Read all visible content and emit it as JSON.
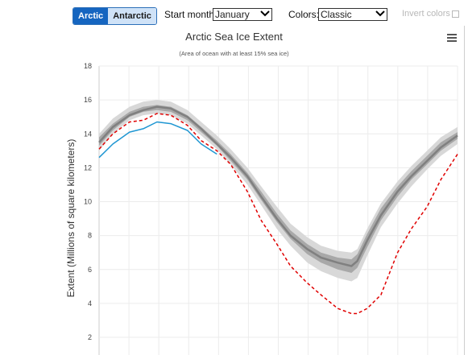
{
  "controls": {
    "hemisphere": {
      "options": [
        "Arctic",
        "Antarctic"
      ],
      "selected": "Arctic"
    },
    "start_month": {
      "label": "Start month:",
      "value": "January"
    },
    "colors": {
      "label": "Colors:",
      "value": "Classic"
    },
    "invert_label": "Invert colors",
    "menu_icon": "hamburger-menu-icon"
  },
  "chart_data": {
    "type": "line",
    "title": "Arctic Sea Ice Extent",
    "subtitle": "(Area of ocean with at least 15% sea ice)",
    "ylabel": "Extent (Millions of square kilometers)",
    "ylim": [
      2,
      18
    ],
    "yticks": [
      2,
      4,
      6,
      8,
      10,
      12,
      14,
      16,
      18
    ],
    "xlim": [
      1,
      366
    ],
    "xlabel": "",
    "grid": true,
    "x": [
      1,
      15,
      32,
      46,
      60,
      74,
      91,
      105,
      121,
      135,
      152,
      166,
      182,
      196,
      213,
      227,
      244,
      258,
      264,
      274,
      288,
      305,
      319,
      335,
      349,
      366
    ],
    "series": [
      {
        "role": "interdecile-range",
        "color": "#d8d8d8",
        "upper": [
          14.0,
          14.9,
          15.6,
          15.9,
          16.0,
          15.9,
          15.4,
          14.7,
          13.9,
          13.1,
          12.0,
          10.9,
          9.7,
          8.7,
          7.9,
          7.4,
          7.1,
          7.0,
          7.2,
          8.4,
          9.9,
          11.2,
          12.1,
          13.0,
          13.8,
          14.4
        ],
        "lower": [
          13.0,
          14.0,
          14.8,
          15.1,
          15.2,
          15.1,
          14.6,
          13.9,
          13.1,
          12.2,
          11.0,
          9.8,
          8.4,
          7.4,
          6.4,
          5.9,
          5.5,
          5.3,
          5.5,
          6.8,
          8.5,
          9.9,
          10.9,
          11.9,
          12.7,
          13.4
        ]
      },
      {
        "role": "interquartile-range",
        "color": "#a8a8a8",
        "upper": [
          13.8,
          14.6,
          15.3,
          15.6,
          15.7,
          15.6,
          15.1,
          14.4,
          13.6,
          12.8,
          11.7,
          10.6,
          9.3,
          8.3,
          7.5,
          7.0,
          6.7,
          6.6,
          6.9,
          8.1,
          9.6,
          10.9,
          11.8,
          12.7,
          13.5,
          14.1
        ],
        "lower": [
          13.3,
          14.2,
          15.0,
          15.3,
          15.4,
          15.3,
          14.8,
          14.1,
          13.3,
          12.4,
          11.3,
          10.1,
          8.8,
          7.8,
          6.9,
          6.4,
          6.0,
          5.8,
          6.1,
          7.3,
          8.9,
          10.3,
          11.3,
          12.2,
          13.0,
          13.7
        ]
      },
      {
        "role": "median",
        "color": "#808080",
        "values": [
          13.5,
          14.4,
          15.1,
          15.4,
          15.6,
          15.5,
          15.0,
          14.3,
          13.4,
          12.6,
          11.5,
          10.3,
          9.0,
          8.0,
          7.2,
          6.7,
          6.4,
          6.2,
          6.5,
          7.7,
          9.2,
          10.6,
          11.5,
          12.4,
          13.2,
          13.9
        ]
      },
      {
        "role": "record-low",
        "color": "#e00000",
        "dashed": true,
        "values": [
          13.1,
          14.0,
          14.7,
          14.8,
          15.2,
          15.1,
          14.5,
          13.6,
          13.0,
          12.2,
          10.6,
          8.9,
          7.5,
          6.2,
          5.2,
          4.5,
          3.7,
          3.4,
          3.4,
          3.7,
          4.5,
          7.0,
          8.4,
          9.7,
          11.3,
          12.8
        ]
      },
      {
        "role": "current-year",
        "color": "#1e96d2",
        "values": [
          12.6,
          13.4,
          14.1,
          14.3,
          14.7,
          14.6,
          14.2,
          13.4,
          12.8,
          null,
          null,
          null,
          null,
          null,
          null,
          null,
          null,
          null,
          null,
          null,
          null,
          null,
          null,
          null,
          null,
          null
        ]
      }
    ]
  }
}
